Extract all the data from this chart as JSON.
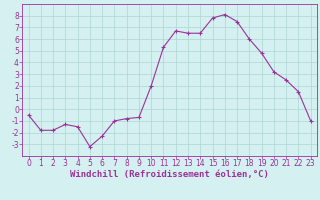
{
  "xlabel": "Windchill (Refroidissement éolien,°C)",
  "x_values": [
    0,
    1,
    2,
    3,
    4,
    5,
    6,
    7,
    8,
    9,
    10,
    11,
    12,
    13,
    14,
    15,
    16,
    17,
    18,
    19,
    20,
    21,
    22,
    23
  ],
  "y_values": [
    -0.5,
    -1.8,
    -1.8,
    -1.3,
    -1.5,
    -3.2,
    -2.3,
    -1.0,
    -0.8,
    -0.7,
    2.0,
    5.3,
    6.7,
    6.5,
    6.5,
    7.8,
    8.1,
    7.5,
    6.0,
    4.8,
    3.2,
    2.5,
    1.5,
    -1.0
  ],
  "line_color": "#993399",
  "marker": "+",
  "bg_color": "#d5f0f0",
  "grid_color": "#aed4d4",
  "tick_color": "#993399",
  "label_color": "#993399",
  "ylim": [
    -4,
    9
  ],
  "yticks": [
    -3,
    -2,
    -1,
    0,
    1,
    2,
    3,
    4,
    5,
    6,
    7,
    8
  ],
  "xticks": [
    0,
    1,
    2,
    3,
    4,
    5,
    6,
    7,
    8,
    9,
    10,
    11,
    12,
    13,
    14,
    15,
    16,
    17,
    18,
    19,
    20,
    21,
    22,
    23
  ],
  "font_size": 5.5,
  "xlabel_font_size": 6.5
}
